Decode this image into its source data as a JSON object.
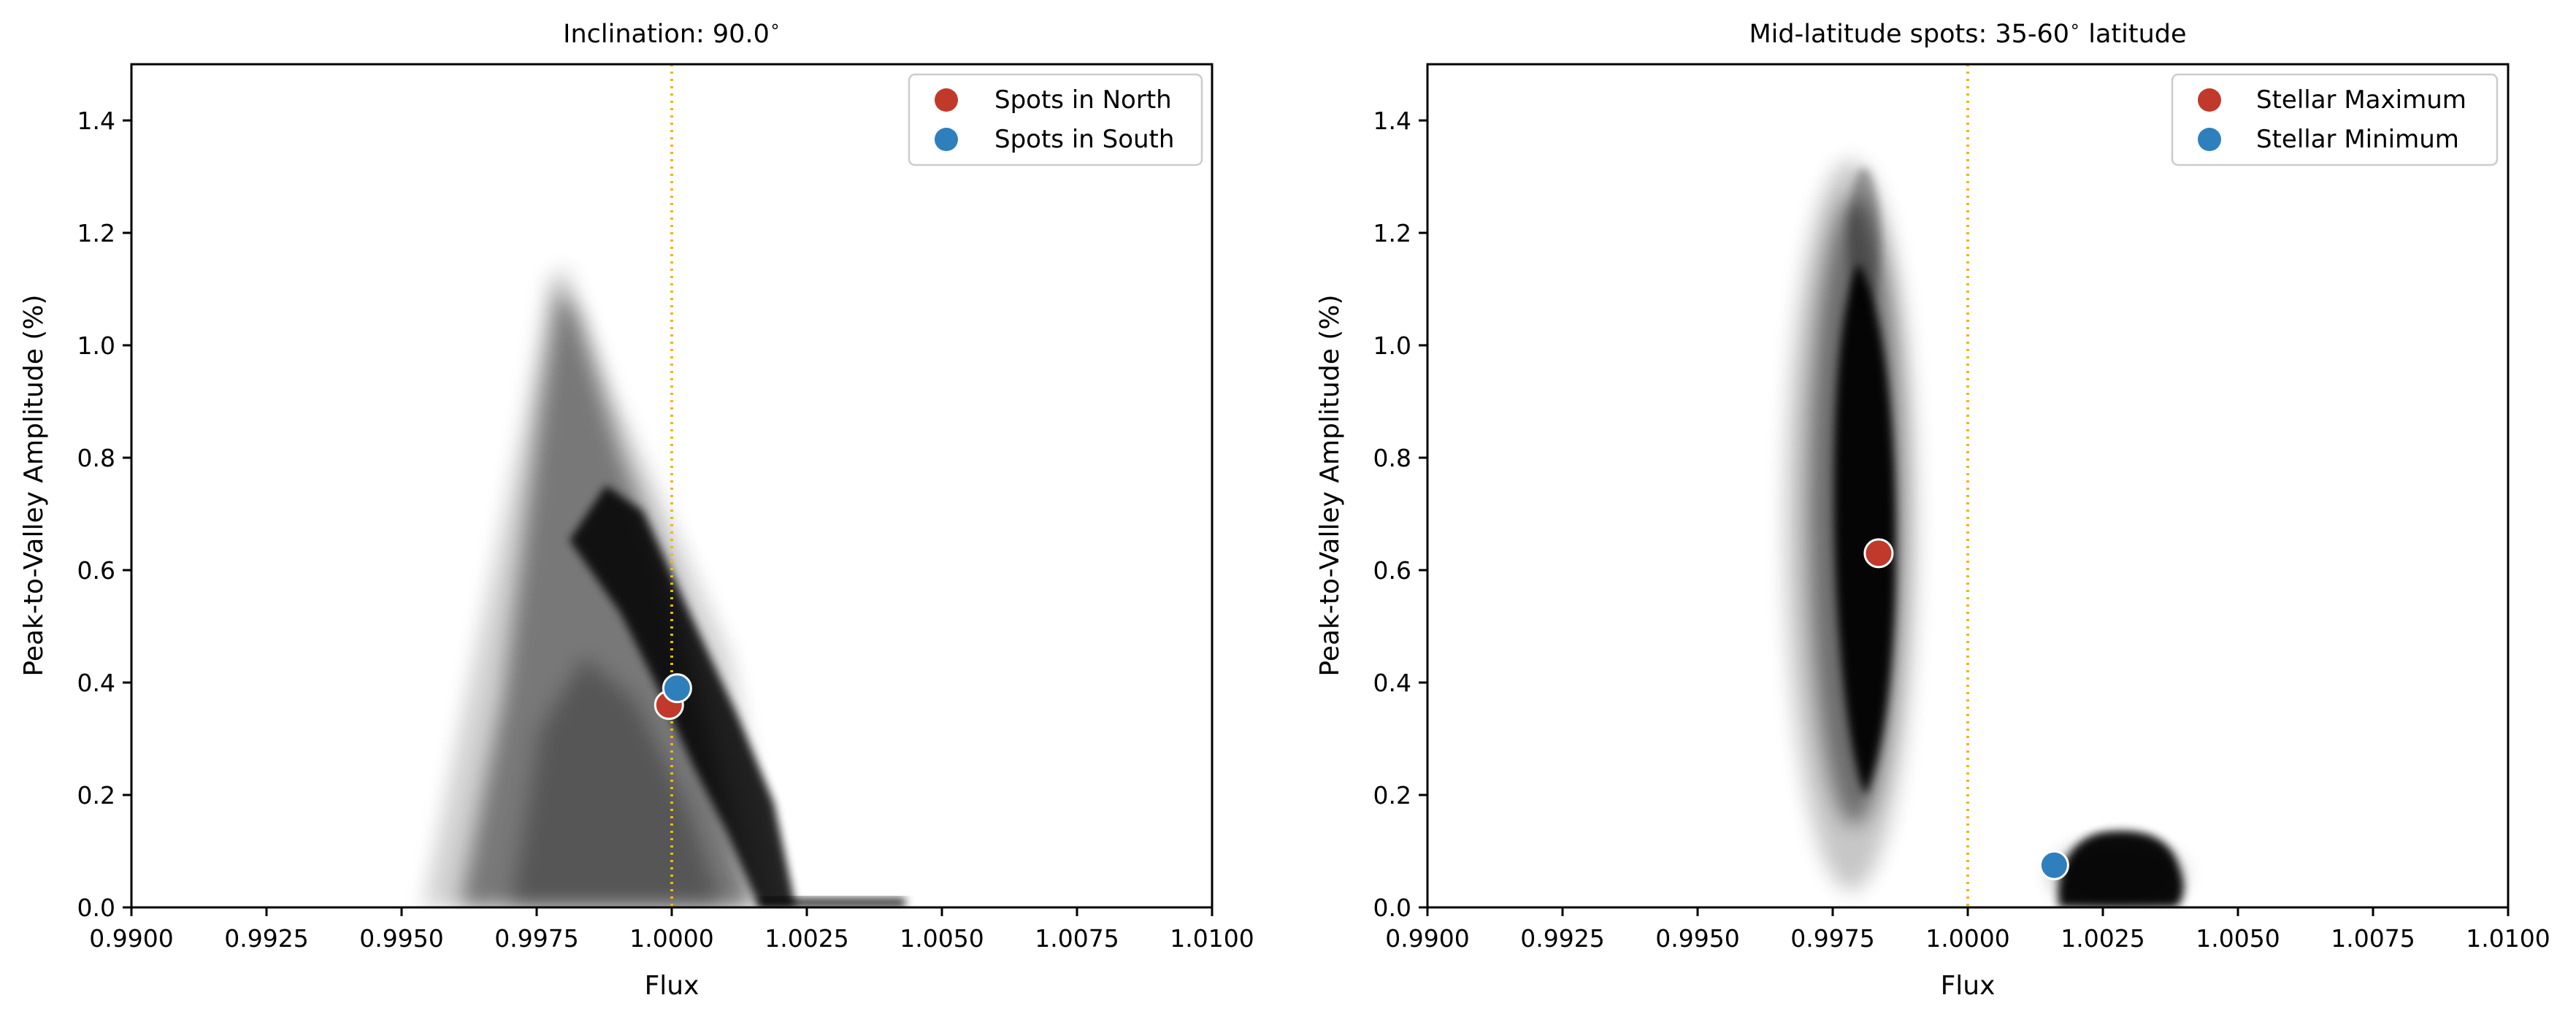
{
  "chart_data": [
    {
      "type": "scatter",
      "title": "Inclination: 90.0$^\\circ$",
      "title_display": "Inclination: 90.0",
      "xlabel": "Flux",
      "ylabel": "Peak-to-Valley Amplitude (%)",
      "xlim": [
        0.99,
        1.01
      ],
      "ylim": [
        0.0,
        1.5
      ],
      "xticks": [
        0.99,
        0.9925,
        0.995,
        0.9975,
        1.0,
        1.0025,
        1.005,
        1.0075,
        1.01
      ],
      "xtick_labels": [
        "0.9900",
        "0.9925",
        "0.9950",
        "0.9975",
        "1.0000",
        "1.0025",
        "1.0050",
        "1.0075",
        "1.0100"
      ],
      "yticks": [
        0.0,
        0.2,
        0.4,
        0.6,
        0.8,
        1.0,
        1.2,
        1.4
      ],
      "ytick_labels": [
        "0.0",
        "0.2",
        "0.4",
        "0.6",
        "0.8",
        "1.0",
        "1.2",
        "1.4"
      ],
      "grid": false,
      "legend_position": "top-right",
      "reference_line": {
        "x": 1.0,
        "style": "dotted",
        "color": "#f2b705"
      },
      "cloud": {
        "description": "dense black scatter of simulated stars",
        "color": "#000000",
        "envelope": [
          [
            0.9958,
            0.0
          ],
          [
            0.9977,
            1.12
          ],
          [
            1.0,
            0.62
          ],
          [
            1.0022,
            0.0
          ]
        ],
        "dense_ridge": [
          [
            0.9985,
            0.6
          ],
          [
            1.0,
            0.42
          ],
          [
            1.0022,
            0.05
          ]
        ],
        "tail": [
          [
            1.0025,
            0.0
          ],
          [
            1.0042,
            0.0
          ]
        ]
      },
      "series": [
        {
          "name": "Spots in North",
          "color": "#c0392b",
          "x": [
            0.99995
          ],
          "y": [
            0.36
          ]
        },
        {
          "name": "Spots in South",
          "color": "#2e7fbc",
          "x": [
            1.0001
          ],
          "y": [
            0.39
          ]
        }
      ]
    },
    {
      "type": "scatter",
      "title": "Mid-latitude spots: 35-60$^\\circ$ latitude",
      "title_display": "Mid-latitude spots: 35-60",
      "title_suffix": " latitude",
      "xlabel": "Flux",
      "ylabel": "Peak-to-Valley Amplitude (%)",
      "xlim": [
        0.99,
        1.01
      ],
      "ylim": [
        0.0,
        1.5
      ],
      "xticks": [
        0.99,
        0.9925,
        0.995,
        0.9975,
        1.0,
        1.0025,
        1.005,
        1.0075,
        1.01
      ],
      "xtick_labels": [
        "0.9900",
        "0.9925",
        "0.9950",
        "0.9975",
        "1.0000",
        "1.0025",
        "1.0050",
        "1.0075",
        "1.0100"
      ],
      "yticks": [
        0.0,
        0.2,
        0.4,
        0.6,
        0.8,
        1.0,
        1.2,
        1.4
      ],
      "ytick_labels": [
        "0.0",
        "0.2",
        "0.4",
        "0.6",
        "0.8",
        "1.0",
        "1.2",
        "1.4"
      ],
      "grid": false,
      "legend_position": "top-right",
      "reference_line": {
        "x": 1.0,
        "style": "dotted",
        "color": "#f2b705"
      },
      "cloud": {
        "description": "narrow vertical black cloud near flux 0.998 and compact blob near flux 1.0025",
        "color": "#000000",
        "column": {
          "x_center": 0.99805,
          "x_halfwidth": 0.0005,
          "y_range": [
            0.02,
            1.3
          ]
        },
        "blob": {
          "x_range": [
            1.0015,
            1.0038
          ],
          "y_range": [
            0.0,
            0.13
          ]
        }
      },
      "series": [
        {
          "name": "Stellar Maximum",
          "color": "#c0392b",
          "x": [
            0.99835
          ],
          "y": [
            0.63
          ]
        },
        {
          "name": "Stellar Minimum",
          "color": "#2e7fbc",
          "x": [
            1.0016
          ],
          "y": [
            0.075
          ]
        }
      ]
    }
  ]
}
